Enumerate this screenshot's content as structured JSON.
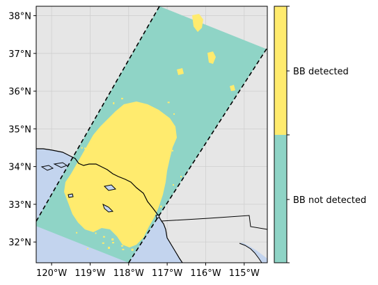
{
  "map": {
    "lon_range": [
      -120.4,
      -114.4
    ],
    "lat_range": [
      31.45,
      38.25
    ],
    "lon_ticks": [
      {
        "value": -120,
        "label": "120°W"
      },
      {
        "value": -119,
        "label": "119°W"
      },
      {
        "value": -118,
        "label": "118°W"
      },
      {
        "value": -117,
        "label": "117°W"
      },
      {
        "value": -116,
        "label": "116°W"
      },
      {
        "value": -115,
        "label": "115°W"
      }
    ],
    "lat_ticks": [
      {
        "value": 32,
        "label": "32°N"
      },
      {
        "value": 33,
        "label": "33°N"
      },
      {
        "value": 34,
        "label": "34°N"
      },
      {
        "value": 35,
        "label": "35°N"
      },
      {
        "value": 36,
        "label": "36°N"
      },
      {
        "value": 37,
        "label": "37°N"
      },
      {
        "value": 38,
        "label": "38°N"
      }
    ],
    "gridlines": true,
    "colors": {
      "land": "#e6e6e6",
      "ocean": "#c3d4ee",
      "grid": "#cfcfcf",
      "not_detected": "#8fd4c6",
      "detected": "#ffeb6e",
      "coast": "#000000"
    },
    "swath_edges": {
      "left": [
        [
          -120.4,
          32.55
        ],
        [
          -117.2,
          38.25
        ]
      ],
      "right": [
        [
          -118.0,
          31.45
        ],
        [
          -114.4,
          37.15
        ]
      ]
    }
  },
  "colorbar": {
    "categories": [
      {
        "label": "BB not detected",
        "color": "#8fd4c6"
      },
      {
        "label": "BB detected",
        "color": "#ffeb6e"
      }
    ]
  }
}
